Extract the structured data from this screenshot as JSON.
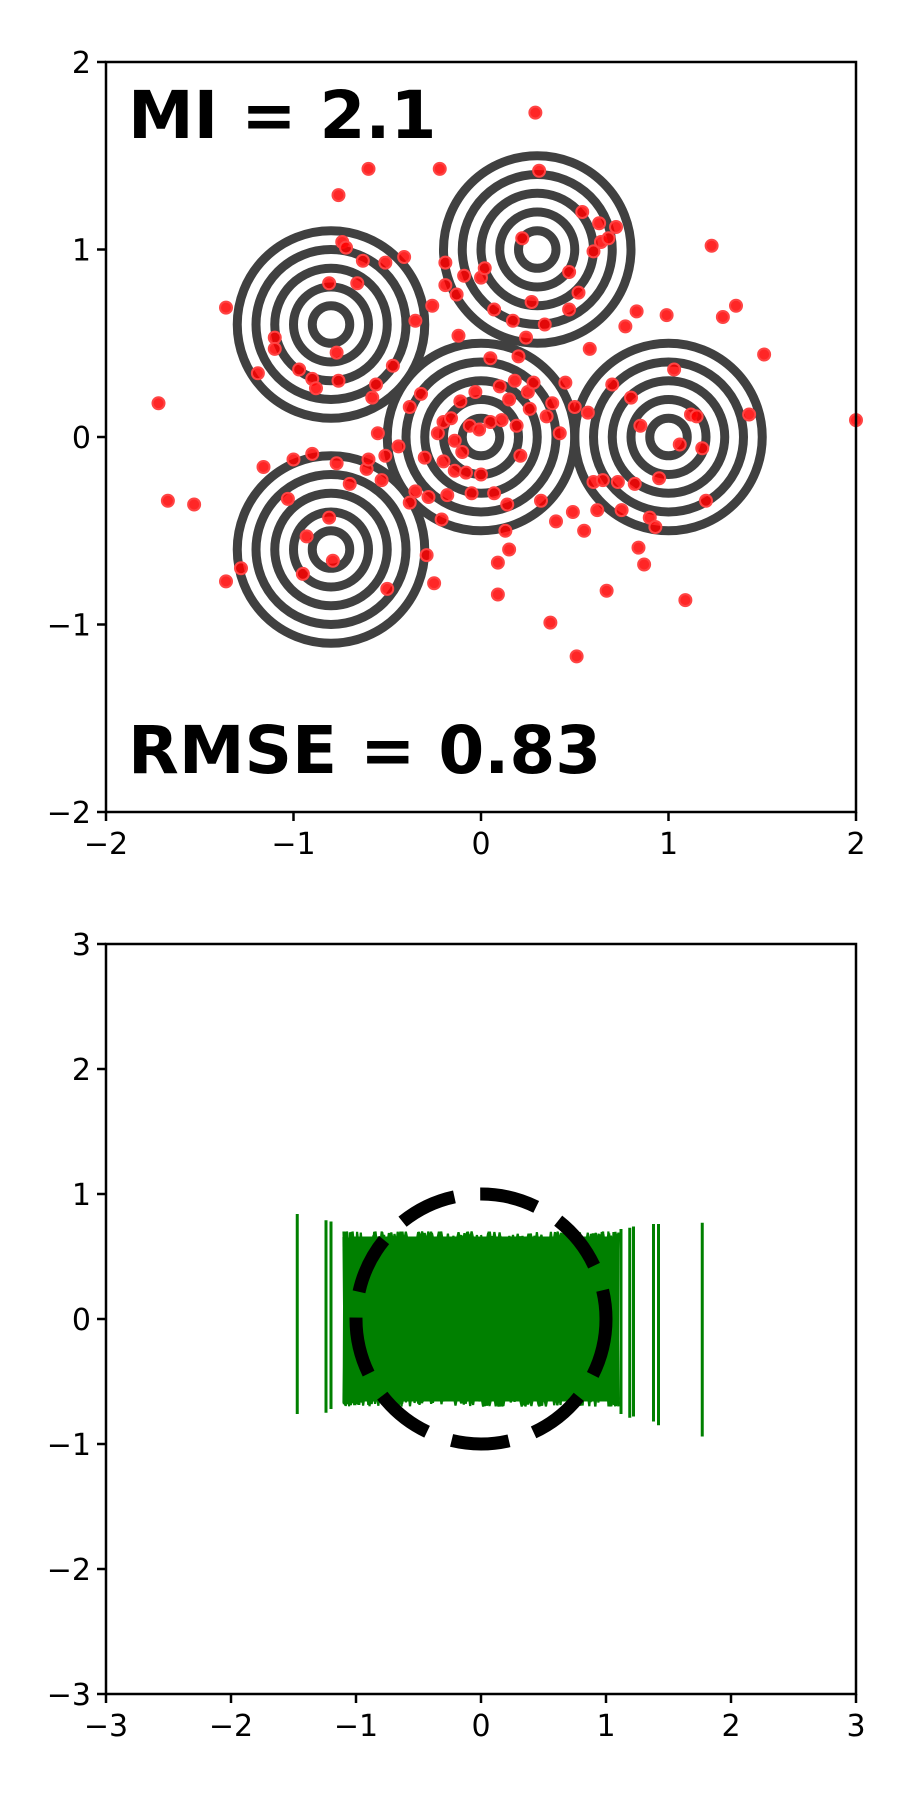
{
  "chart_data": [
    {
      "type": "scatter",
      "title": "",
      "xlabel": "",
      "ylabel": "",
      "xlim": [
        -2,
        2
      ],
      "ylim": [
        -2,
        2
      ],
      "xticks": [
        -2,
        -1,
        0,
        1,
        2
      ],
      "yticks": [
        -2,
        -1,
        0,
        1,
        2
      ],
      "xtick_labels": [
        "−2",
        "−1",
        "0",
        "1",
        "2"
      ],
      "ytick_labels": [
        "−2",
        "−1",
        "0",
        "1",
        "2"
      ],
      "grid": false,
      "annotations": {
        "mi": "MI = 2.1",
        "rmse": "RMSE = 0.83"
      },
      "contour": {
        "color": "#404040",
        "centers": [
          [
            -0.8,
            0.6
          ],
          [
            0.3,
            1.0
          ],
          [
            0.0,
            0.0
          ],
          [
            1.0,
            0.0
          ],
          [
            -0.8,
            -0.6
          ]
        ],
        "radii": [
          0.1,
          0.2,
          0.3,
          0.4,
          0.5
        ]
      },
      "point_color": "#ff0000",
      "points": [
        [
          -1.72,
          0.18
        ],
        [
          -1.67,
          -0.34
        ],
        [
          -1.53,
          -0.36
        ],
        [
          -1.36,
          0.69
        ],
        [
          -1.36,
          -0.77
        ],
        [
          -1.28,
          -0.7
        ],
        [
          -1.19,
          0.34
        ],
        [
          -1.16,
          -0.16
        ],
        [
          -1.1,
          0.53
        ],
        [
          -1.1,
          0.47
        ],
        [
          -1.03,
          -0.33
        ],
        [
          -1.0,
          -0.12
        ],
        [
          -0.97,
          0.36
        ],
        [
          -0.95,
          -0.73
        ],
        [
          -0.93,
          -0.53
        ],
        [
          -0.9,
          -0.09
        ],
        [
          -0.9,
          0.31
        ],
        [
          -0.88,
          0.26
        ],
        [
          -0.81,
          0.82
        ],
        [
          -0.81,
          -0.43
        ],
        [
          -0.79,
          -0.66
        ],
        [
          -0.77,
          0.45
        ],
        [
          -0.76,
          0.3
        ],
        [
          -0.77,
          -0.14
        ],
        [
          -0.76,
          1.29
        ],
        [
          -0.74,
          1.04
        ],
        [
          -0.72,
          1.01
        ],
        [
          -0.7,
          -0.25
        ],
        [
          -0.66,
          0.82
        ],
        [
          -0.63,
          0.94
        ],
        [
          -0.61,
          -0.17
        ],
        [
          -0.6,
          1.43
        ],
        [
          -0.6,
          -0.12
        ],
        [
          -0.58,
          0.21
        ],
        [
          -0.56,
          0.28
        ],
        [
          -0.55,
          0.02
        ],
        [
          -0.53,
          -0.23
        ],
        [
          -0.51,
          -0.1
        ],
        [
          -0.51,
          0.93
        ],
        [
          -0.5,
          -0.81
        ],
        [
          -0.47,
          0.38
        ],
        [
          -0.44,
          -0.05
        ],
        [
          -0.41,
          0.96
        ],
        [
          -0.38,
          0.16
        ],
        [
          -0.38,
          -0.35
        ],
        [
          -0.35,
          -0.29
        ],
        [
          -0.35,
          0.62
        ],
        [
          -0.32,
          0.23
        ],
        [
          -0.3,
          -0.11
        ],
        [
          -0.29,
          -0.63
        ],
        [
          -0.28,
          -0.32
        ],
        [
          -0.26,
          0.7
        ],
        [
          -0.25,
          -0.78
        ],
        [
          -0.23,
          0.02
        ],
        [
          -0.22,
          1.43
        ],
        [
          -0.21,
          -0.44
        ],
        [
          -0.2,
          0.08
        ],
        [
          -0.2,
          -0.13
        ],
        [
          -0.19,
          0.93
        ],
        [
          -0.19,
          0.81
        ],
        [
          -0.18,
          -0.31
        ],
        [
          -0.16,
          0.1
        ],
        [
          -0.14,
          -0.02
        ],
        [
          -0.14,
          -0.18
        ],
        [
          -0.13,
          0.76
        ],
        [
          -0.12,
          0.54
        ],
        [
          -0.11,
          0.19
        ],
        [
          -0.1,
          -0.08
        ],
        [
          -0.09,
          0.86
        ],
        [
          -0.08,
          -0.19
        ],
        [
          -0.06,
          0.06
        ],
        [
          -0.05,
          -0.3
        ],
        [
          -0.03,
          0.24
        ],
        [
          -0.01,
          0.04
        ],
        [
          0.0,
          -0.2
        ],
        [
          0.0,
          0.85
        ],
        [
          0.02,
          0.9
        ],
        [
          0.05,
          0.08
        ],
        [
          0.05,
          0.42
        ],
        [
          0.07,
          0.68
        ],
        [
          0.07,
          -0.3
        ],
        [
          0.09,
          -0.67
        ],
        [
          0.09,
          -0.84
        ],
        [
          0.1,
          0.27
        ],
        [
          0.11,
          0.09
        ],
        [
          0.13,
          -0.5
        ],
        [
          0.14,
          -0.36
        ],
        [
          0.15,
          0.2
        ],
        [
          0.15,
          -0.6
        ],
        [
          0.17,
          0.62
        ],
        [
          0.18,
          0.3
        ],
        [
          0.19,
          0.06
        ],
        [
          0.2,
          0.43
        ],
        [
          0.21,
          -0.1
        ],
        [
          0.22,
          1.06
        ],
        [
          0.24,
          0.53
        ],
        [
          0.25,
          0.24
        ],
        [
          0.26,
          0.15
        ],
        [
          0.27,
          0.72
        ],
        [
          0.28,
          0.29
        ],
        [
          0.29,
          1.73
        ],
        [
          0.31,
          1.42
        ],
        [
          0.32,
          -0.34
        ],
        [
          0.34,
          0.6
        ],
        [
          0.35,
          0.11
        ],
        [
          0.37,
          -0.99
        ],
        [
          0.38,
          0.18
        ],
        [
          0.4,
          -0.45
        ],
        [
          0.42,
          0.02
        ],
        [
          0.45,
          0.29
        ],
        [
          0.47,
          0.88
        ],
        [
          0.47,
          0.68
        ],
        [
          0.49,
          -0.4
        ],
        [
          0.5,
          0.16
        ],
        [
          0.51,
          -1.17
        ],
        [
          0.52,
          0.77
        ],
        [
          0.54,
          1.2
        ],
        [
          0.55,
          -0.5
        ],
        [
          0.57,
          0.13
        ],
        [
          0.58,
          0.47
        ],
        [
          0.6,
          -0.24
        ],
        [
          0.6,
          0.99
        ],
        [
          0.62,
          -0.39
        ],
        [
          0.63,
          1.14
        ],
        [
          0.64,
          1.04
        ],
        [
          0.65,
          -0.23
        ],
        [
          0.67,
          -0.82
        ],
        [
          0.68,
          1.06
        ],
        [
          0.7,
          0.28
        ],
        [
          0.72,
          1.12
        ],
        [
          0.73,
          -0.24
        ],
        [
          0.75,
          -0.39
        ],
        [
          0.77,
          0.59
        ],
        [
          0.8,
          0.21
        ],
        [
          0.82,
          -0.25
        ],
        [
          0.83,
          0.67
        ],
        [
          0.84,
          -0.59
        ],
        [
          0.85,
          0.06
        ],
        [
          0.87,
          -0.68
        ],
        [
          0.9,
          -0.43
        ],
        [
          0.93,
          -0.48
        ],
        [
          0.95,
          -0.22
        ],
        [
          0.99,
          0.65
        ],
        [
          1.03,
          0.36
        ],
        [
          1.06,
          -0.04
        ],
        [
          1.09,
          -0.87
        ],
        [
          1.12,
          0.12
        ],
        [
          1.15,
          0.11
        ],
        [
          1.18,
          -0.06
        ],
        [
          1.2,
          -0.34
        ],
        [
          1.23,
          1.02
        ],
        [
          1.29,
          0.64
        ],
        [
          1.36,
          0.7
        ],
        [
          1.43,
          0.12
        ],
        [
          1.51,
          0.44
        ],
        [
          2.0,
          0.09
        ]
      ]
    },
    {
      "type": "line",
      "title": "",
      "xlabel": "",
      "ylabel": "",
      "xlim": [
        -3,
        3
      ],
      "ylim": [
        -3,
        3
      ],
      "xticks": [
        -3,
        -2,
        -1,
        0,
        1,
        2,
        3
      ],
      "yticks": [
        -3,
        -2,
        -1,
        0,
        1,
        2,
        3
      ],
      "xtick_labels": [
        "−3",
        "−2",
        "−1",
        "0",
        "1",
        "2",
        "3"
      ],
      "ytick_labels": [
        "−3",
        "−2",
        "−1",
        "0",
        "1",
        "2",
        "3"
      ],
      "grid": false,
      "circle": {
        "center": [
          0,
          0
        ],
        "radius": 1.0,
        "style": "dashed",
        "color": "#000000"
      },
      "trajectory": {
        "color": "#008000",
        "x_range": [
          -1.47,
          1.77
        ],
        "y_range": [
          -0.94,
          0.84
        ],
        "dense_x_range": [
          -1.1,
          1.1
        ],
        "dense_y_range": [
          -0.7,
          0.7
        ],
        "outlier_strokes": [
          [
            -1.47,
            0.84,
            -0.76
          ],
          [
            -1.24,
            0.79,
            -0.75
          ],
          [
            -1.2,
            0.78,
            -0.72
          ],
          [
            1.12,
            0.72,
            -0.76
          ],
          [
            1.19,
            0.73,
            -0.79
          ],
          [
            1.22,
            0.74,
            -0.78
          ],
          [
            1.38,
            0.76,
            -0.82
          ],
          [
            1.42,
            0.76,
            -0.85
          ],
          [
            1.77,
            0.77,
            -0.94
          ]
        ]
      }
    }
  ]
}
